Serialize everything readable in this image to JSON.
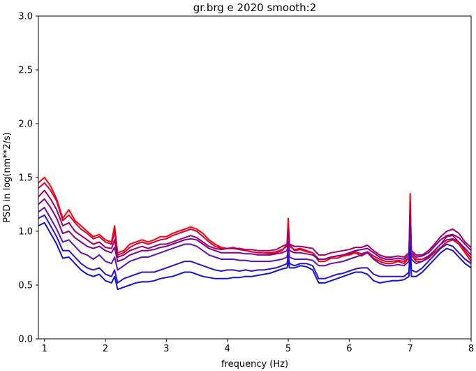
{
  "chart_data": {
    "type": "line",
    "title": "gr.brg e 2020 smooth:2",
    "xlabel": "frequency (Hz)",
    "ylabel": "PSD in log(nm**2/s)",
    "xlim": [
      0.9,
      8.0
    ],
    "ylim": [
      0.0,
      3.0
    ],
    "x_ticks": [
      1,
      2,
      3,
      4,
      5,
      6,
      7,
      8
    ],
    "y_ticks": [
      0.0,
      0.5,
      1.0,
      1.5,
      2.0,
      2.5,
      3.0
    ],
    "x_tick_labels": [
      "1",
      "2",
      "3",
      "4",
      "5",
      "6",
      "7",
      "8"
    ],
    "y_tick_labels": [
      "0.0",
      "0.5",
      "1.0",
      "1.5",
      "2.0",
      "2.5",
      "3.0"
    ],
    "grid": false,
    "x": [
      0.9,
      1.0,
      1.1,
      1.2,
      1.3,
      1.4,
      1.5,
      1.6,
      1.7,
      1.8,
      1.9,
      2.0,
      2.1,
      2.15,
      2.2,
      2.3,
      2.4,
      2.5,
      2.6,
      2.7,
      2.8,
      2.9,
      3.0,
      3.1,
      3.2,
      3.3,
      3.4,
      3.5,
      3.6,
      3.7,
      3.8,
      3.9,
      4.0,
      4.1,
      4.2,
      4.3,
      4.4,
      4.5,
      4.6,
      4.7,
      4.8,
      4.9,
      4.98,
      5.0,
      5.02,
      5.1,
      5.2,
      5.3,
      5.4,
      5.5,
      5.6,
      5.7,
      5.8,
      5.9,
      6.0,
      6.1,
      6.2,
      6.3,
      6.4,
      6.5,
      6.6,
      6.7,
      6.8,
      6.9,
      6.98,
      7.0,
      7.02,
      7.1,
      7.2,
      7.3,
      7.4,
      7.5,
      7.6,
      7.7,
      7.8,
      7.9,
      8.0
    ],
    "series": [
      {
        "color": "#ff0000",
        "values": [
          1.45,
          1.5,
          1.42,
          1.3,
          1.12,
          1.2,
          1.1,
          1.05,
          1.0,
          0.95,
          0.97,
          0.92,
          0.9,
          1.05,
          0.8,
          0.82,
          0.88,
          0.9,
          0.92,
          0.9,
          0.92,
          0.95,
          0.95,
          0.98,
          1.0,
          1.02,
          1.04,
          1.02,
          0.98,
          0.92,
          0.88,
          0.85,
          0.84,
          0.85,
          0.83,
          0.82,
          0.81,
          0.8,
          0.8,
          0.79,
          0.8,
          0.82,
          0.88,
          1.12,
          0.88,
          0.82,
          0.83,
          0.81,
          0.8,
          0.72,
          0.72,
          0.75,
          0.75,
          0.77,
          0.78,
          0.8,
          0.77,
          0.8,
          0.75,
          0.72,
          0.7,
          0.7,
          0.72,
          0.7,
          0.75,
          1.35,
          0.78,
          0.72,
          0.72,
          0.75,
          0.8,
          0.85,
          0.9,
          0.92,
          0.88,
          0.8,
          0.72
        ]
      },
      {
        "color": "#d9003a",
        "values": [
          1.4,
          1.45,
          1.38,
          1.28,
          1.1,
          1.15,
          1.08,
          1.02,
          0.98,
          0.93,
          0.95,
          0.9,
          0.88,
          1.0,
          0.78,
          0.8,
          0.85,
          0.88,
          0.9,
          0.88,
          0.9,
          0.92,
          0.93,
          0.96,
          0.98,
          1.0,
          1.02,
          1.0,
          0.95,
          0.9,
          0.86,
          0.84,
          0.84,
          0.84,
          0.83,
          0.82,
          0.81,
          0.8,
          0.8,
          0.8,
          0.81,
          0.83,
          0.86,
          1.05,
          0.86,
          0.83,
          0.84,
          0.82,
          0.8,
          0.74,
          0.74,
          0.76,
          0.77,
          0.78,
          0.79,
          0.81,
          0.79,
          0.81,
          0.77,
          0.74,
          0.72,
          0.72,
          0.73,
          0.72,
          0.76,
          1.25,
          0.78,
          0.74,
          0.74,
          0.77,
          0.82,
          0.88,
          0.95,
          0.96,
          0.9,
          0.82,
          0.75
        ]
      },
      {
        "color": "#a00064",
        "values": [
          1.32,
          1.38,
          1.3,
          1.2,
          1.05,
          1.08,
          1.0,
          0.96,
          0.92,
          0.88,
          0.9,
          0.85,
          0.84,
          0.92,
          0.76,
          0.78,
          0.82,
          0.84,
          0.86,
          0.84,
          0.86,
          0.88,
          0.88,
          0.9,
          0.92,
          0.94,
          0.96,
          0.94,
          0.9,
          0.86,
          0.84,
          0.83,
          0.84,
          0.84,
          0.84,
          0.83,
          0.83,
          0.82,
          0.82,
          0.82,
          0.83,
          0.86,
          0.88,
          0.98,
          0.88,
          0.86,
          0.86,
          0.85,
          0.84,
          0.78,
          0.78,
          0.8,
          0.81,
          0.82,
          0.83,
          0.85,
          0.85,
          0.87,
          0.82,
          0.78,
          0.76,
          0.76,
          0.77,
          0.76,
          0.8,
          1.15,
          0.82,
          0.78,
          0.78,
          0.82,
          0.88,
          0.95,
          1.0,
          1.02,
          0.98,
          0.9,
          0.85
        ]
      },
      {
        "color": "#80008c",
        "values": [
          1.25,
          1.3,
          1.22,
          1.12,
          0.98,
          1.0,
          0.94,
          0.9,
          0.86,
          0.84,
          0.86,
          0.82,
          0.8,
          0.85,
          0.72,
          0.74,
          0.78,
          0.8,
          0.82,
          0.82,
          0.83,
          0.85,
          0.86,
          0.88,
          0.9,
          0.92,
          0.93,
          0.92,
          0.88,
          0.84,
          0.82,
          0.8,
          0.8,
          0.8,
          0.8,
          0.79,
          0.79,
          0.78,
          0.78,
          0.78,
          0.79,
          0.8,
          0.82,
          0.9,
          0.82,
          0.8,
          0.8,
          0.79,
          0.78,
          0.74,
          0.74,
          0.76,
          0.77,
          0.78,
          0.8,
          0.82,
          0.83,
          0.84,
          0.8,
          0.76,
          0.74,
          0.74,
          0.75,
          0.74,
          0.78,
          1.05,
          0.8,
          0.76,
          0.77,
          0.8,
          0.86,
          0.92,
          0.96,
          0.97,
          0.94,
          0.88,
          0.82
        ]
      },
      {
        "color": "#6010b4",
        "values": [
          1.18,
          1.22,
          1.12,
          1.02,
          0.9,
          0.92,
          0.86,
          0.8,
          0.78,
          0.74,
          0.78,
          0.72,
          0.7,
          0.76,
          0.64,
          0.68,
          0.72,
          0.74,
          0.76,
          0.76,
          0.78,
          0.8,
          0.82,
          0.84,
          0.86,
          0.88,
          0.88,
          0.86,
          0.82,
          0.78,
          0.76,
          0.74,
          0.74,
          0.74,
          0.73,
          0.73,
          0.72,
          0.72,
          0.72,
          0.72,
          0.73,
          0.74,
          0.76,
          0.85,
          0.76,
          0.74,
          0.74,
          0.74,
          0.73,
          0.68,
          0.68,
          0.7,
          0.71,
          0.72,
          0.74,
          0.76,
          0.78,
          0.8,
          0.74,
          0.7,
          0.68,
          0.68,
          0.69,
          0.68,
          0.72,
          0.95,
          0.74,
          0.7,
          0.72,
          0.76,
          0.82,
          0.88,
          0.92,
          0.93,
          0.9,
          0.84,
          0.78
        ]
      },
      {
        "color": "#3010d0",
        "values": [
          1.12,
          1.15,
          1.05,
          0.95,
          0.82,
          0.82,
          0.76,
          0.7,
          0.66,
          0.64,
          0.66,
          0.6,
          0.58,
          0.64,
          0.52,
          0.56,
          0.58,
          0.6,
          0.62,
          0.62,
          0.62,
          0.64,
          0.66,
          0.68,
          0.7,
          0.72,
          0.72,
          0.7,
          0.68,
          0.66,
          0.64,
          0.63,
          0.64,
          0.64,
          0.63,
          0.64,
          0.63,
          0.64,
          0.64,
          0.65,
          0.66,
          0.68,
          0.7,
          0.78,
          0.7,
          0.68,
          0.7,
          0.7,
          0.68,
          0.56,
          0.56,
          0.58,
          0.6,
          0.61,
          0.63,
          0.65,
          0.66,
          0.66,
          0.6,
          0.58,
          0.58,
          0.58,
          0.58,
          0.58,
          0.62,
          0.86,
          0.64,
          0.62,
          0.66,
          0.72,
          0.78,
          0.84,
          0.88,
          0.86,
          0.8,
          0.74,
          0.7
        ]
      },
      {
        "color": "#1010e0",
        "values": [
          1.05,
          1.08,
          0.98,
          0.88,
          0.75,
          0.76,
          0.7,
          0.64,
          0.6,
          0.58,
          0.6,
          0.54,
          0.52,
          0.58,
          0.46,
          0.48,
          0.5,
          0.52,
          0.53,
          0.53,
          0.54,
          0.56,
          0.57,
          0.58,
          0.6,
          0.62,
          0.62,
          0.6,
          0.58,
          0.57,
          0.56,
          0.56,
          0.56,
          0.57,
          0.57,
          0.58,
          0.58,
          0.59,
          0.6,
          0.61,
          0.63,
          0.65,
          0.66,
          0.72,
          0.66,
          0.66,
          0.68,
          0.67,
          0.64,
          0.52,
          0.52,
          0.54,
          0.56,
          0.58,
          0.6,
          0.62,
          0.62,
          0.6,
          0.54,
          0.52,
          0.53,
          0.54,
          0.54,
          0.55,
          0.58,
          0.8,
          0.58,
          0.58,
          0.62,
          0.68,
          0.74,
          0.8,
          0.84,
          0.82,
          0.76,
          0.7,
          0.66
        ]
      }
    ]
  }
}
